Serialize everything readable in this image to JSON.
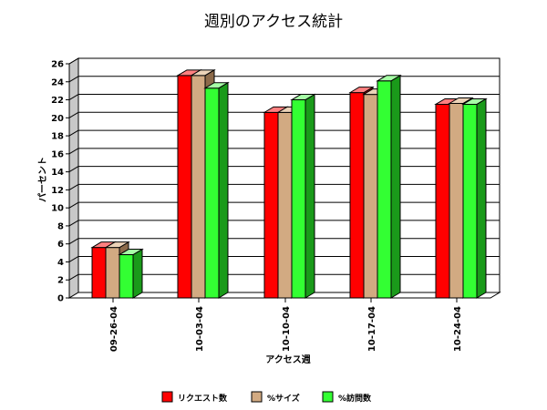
{
  "chart_data": {
    "type": "bar",
    "title": "週別のアクセス統計",
    "xlabel": "アクセス週",
    "ylabel": "パーセント",
    "categories": [
      "09-26-04",
      "10-03-04",
      "10-10-04",
      "10-17-04",
      "10-24-04"
    ],
    "series": [
      {
        "name": "リクエスト数",
        "values": [
          5.6,
          24.7,
          20.6,
          22.8,
          21.5
        ],
        "color": "#ff0000",
        "side": "#990000",
        "top": "#ff8080"
      },
      {
        "name": "%サイズ",
        "values": [
          5.6,
          24.7,
          20.6,
          22.6,
          21.6
        ],
        "color": "#d2aa82",
        "side": "#8c6a4a",
        "top": "#ecd3b8"
      },
      {
        "name": "%訪問数",
        "values": [
          4.8,
          23.3,
          22.0,
          24.1,
          21.5
        ],
        "color": "#33ff33",
        "side": "#1a9a1a",
        "top": "#a6ffa6"
      }
    ],
    "ylim": [
      0,
      26
    ],
    "yticks": [
      "0",
      "2",
      "4",
      "6",
      "8",
      "10",
      "12",
      "14",
      "16",
      "18",
      "20",
      "22",
      "24",
      "26"
    ],
    "grid": true,
    "legend": "bottom"
  }
}
